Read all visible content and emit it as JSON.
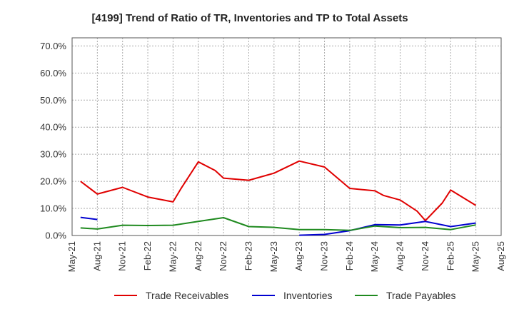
{
  "chart_data": {
    "type": "line",
    "title": "[4199]  Trend of Ratio of TR, Inventories and TP to Total Assets",
    "xlabel": "",
    "ylabel": "",
    "x_tick_labels": [
      "May-21",
      "Aug-21",
      "Nov-21",
      "Feb-22",
      "May-22",
      "Aug-22",
      "Nov-22",
      "Feb-23",
      "May-23",
      "Aug-23",
      "Nov-23",
      "Feb-24",
      "May-24",
      "Aug-24",
      "Nov-24",
      "Feb-25",
      "May-25",
      "Aug-25"
    ],
    "y_tick_labels": [
      "0.0%",
      "10.0%",
      "20.0%",
      "30.0%",
      "40.0%",
      "50.0%",
      "60.0%",
      "70.0%"
    ],
    "ylim": [
      0,
      73
    ],
    "grid": true,
    "legend_position": "bottom",
    "series": [
      {
        "name": "Trade Receivables",
        "color": "#e00000",
        "points": [
          [
            "Jun-21",
            20.0
          ],
          [
            "Aug-21",
            15.3
          ],
          [
            "Nov-21",
            17.8
          ],
          [
            "Feb-22",
            14.2
          ],
          [
            "May-22",
            12.4
          ],
          [
            "Jun-22",
            17.6
          ],
          [
            "Aug-22",
            27.2
          ],
          [
            "Oct-22",
            24.0
          ],
          [
            "Nov-22",
            21.2
          ],
          [
            "Feb-23",
            20.4
          ],
          [
            "May-23",
            23.0
          ],
          [
            "Aug-23",
            27.5
          ],
          [
            "Nov-23",
            25.3
          ],
          [
            "Feb-24",
            17.4
          ],
          [
            "May-24",
            16.5
          ],
          [
            "Jun-24",
            14.8
          ],
          [
            "Aug-24",
            13.1
          ],
          [
            "Oct-24",
            9.0
          ],
          [
            "Nov-24",
            5.5
          ],
          [
            "Jan-25",
            12.0
          ],
          [
            "Feb-25",
            16.8
          ],
          [
            "May-25",
            11.1
          ]
        ]
      },
      {
        "name": "Inventories",
        "color": "#0000d0",
        "points": [
          [
            "Jun-21",
            6.7
          ],
          [
            "Aug-21",
            5.9
          ],
          [
            null,
            null
          ],
          [
            "Aug-23",
            0.1
          ],
          [
            "Nov-23",
            0.4
          ],
          [
            "Feb-24",
            1.8
          ],
          [
            "May-24",
            4.0
          ],
          [
            "Aug-24",
            3.9
          ],
          [
            "Nov-24",
            5.2
          ],
          [
            "Feb-25",
            3.3
          ],
          [
            "May-25",
            4.6
          ]
        ]
      },
      {
        "name": "Trade Payables",
        "color": "#1f8a1f",
        "points": [
          [
            "Jun-21",
            2.8
          ],
          [
            "Aug-21",
            2.4
          ],
          [
            "Nov-21",
            3.8
          ],
          [
            "Feb-22",
            3.7
          ],
          [
            "May-22",
            3.8
          ],
          [
            "Aug-22",
            5.2
          ],
          [
            "Nov-22",
            6.6
          ],
          [
            "Feb-23",
            3.3
          ],
          [
            "May-23",
            3.0
          ],
          [
            "Aug-23",
            2.2
          ],
          [
            "Nov-23",
            2.2
          ],
          [
            "Feb-24",
            1.9
          ],
          [
            "May-24",
            3.5
          ],
          [
            "Aug-24",
            2.9
          ],
          [
            "Nov-24",
            3.0
          ],
          [
            "Feb-25",
            2.2
          ],
          [
            "May-25",
            3.9
          ]
        ]
      }
    ]
  }
}
